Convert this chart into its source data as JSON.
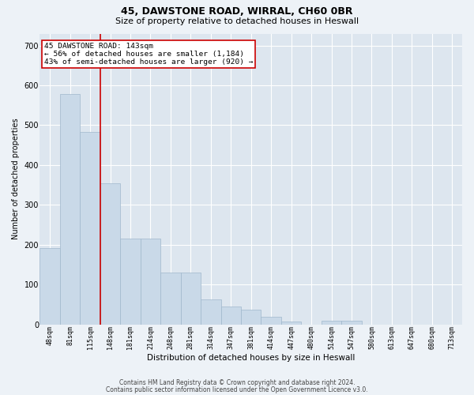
{
  "title1": "45, DAWSTONE ROAD, WIRRAL, CH60 0BR",
  "title2": "Size of property relative to detached houses in Heswall",
  "xlabel": "Distribution of detached houses by size in Heswall",
  "ylabel": "Number of detached properties",
  "bar_labels": [
    "48sqm",
    "81sqm",
    "115sqm",
    "148sqm",
    "181sqm",
    "214sqm",
    "248sqm",
    "281sqm",
    "314sqm",
    "347sqm",
    "381sqm",
    "414sqm",
    "447sqm",
    "480sqm",
    "514sqm",
    "547sqm",
    "580sqm",
    "613sqm",
    "647sqm",
    "680sqm",
    "713sqm"
  ],
  "bar_values": [
    192,
    578,
    484,
    355,
    215,
    215,
    130,
    130,
    63,
    45,
    37,
    18,
    8,
    0,
    10,
    10,
    0,
    0,
    0,
    0,
    0
  ],
  "bar_color": "#c9d9e8",
  "bar_edgecolor": "#a0b8cc",
  "vline_x_index": 3,
  "vline_color": "#cc0000",
  "annotation_text": "45 DAWSTONE ROAD: 143sqm\n← 56% of detached houses are smaller (1,184)\n43% of semi-detached houses are larger (920) →",
  "annotation_box_color": "#ffffff",
  "annotation_box_edgecolor": "#cc0000",
  "ylim": [
    0,
    730
  ],
  "yticks": [
    0,
    100,
    200,
    300,
    400,
    500,
    600,
    700
  ],
  "footer1": "Contains HM Land Registry data © Crown copyright and database right 2024.",
  "footer2": "Contains public sector information licensed under the Open Government Licence v3.0.",
  "bg_color": "#edf2f7",
  "plot_bg_color": "#dde6ef",
  "title1_fontsize": 9,
  "title2_fontsize": 8,
  "xlabel_fontsize": 7.5,
  "ylabel_fontsize": 7,
  "xtick_fontsize": 6,
  "ytick_fontsize": 7,
  "annotation_fontsize": 6.8,
  "footer_fontsize": 5.5
}
